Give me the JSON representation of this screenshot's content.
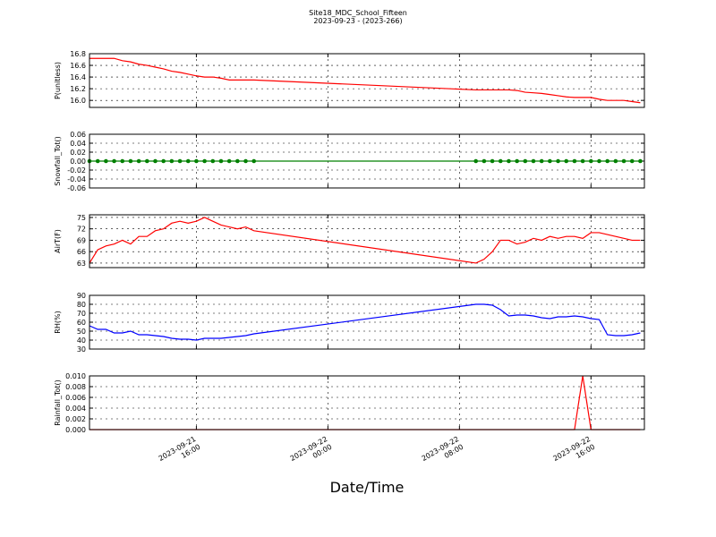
{
  "chart_data": {
    "type": "line",
    "title": "Site18_MDC_School_Fifteen",
    "subtitle": "2023-09-23 - (2023-266)",
    "xlabel": "Date/Time",
    "grid": true,
    "x": [
      "2023-09-21 09:30",
      "2023-09-21 10:00",
      "2023-09-21 10:30",
      "2023-09-21 11:00",
      "2023-09-21 11:30",
      "2023-09-21 12:00",
      "2023-09-21 12:30",
      "2023-09-21 13:00",
      "2023-09-21 13:30",
      "2023-09-21 14:00",
      "2023-09-21 14:30",
      "2023-09-21 15:00",
      "2023-09-21 15:30",
      "2023-09-21 16:00",
      "2023-09-21 16:30",
      "2023-09-21 17:00",
      "2023-09-21 17:30",
      "2023-09-21 18:00",
      "2023-09-21 18:30",
      "2023-09-21 19:00",
      "2023-09-21 19:30",
      "2023-09-22 09:00",
      "2023-09-22 09:30",
      "2023-09-22 10:00",
      "2023-09-22 10:30",
      "2023-09-22 11:00",
      "2023-09-22 11:30",
      "2023-09-22 12:00",
      "2023-09-22 12:30",
      "2023-09-22 13:00",
      "2023-09-22 13:30",
      "2023-09-22 14:00",
      "2023-09-22 14:30",
      "2023-09-22 15:00",
      "2023-09-22 15:30",
      "2023-09-22 16:00",
      "2023-09-22 16:30",
      "2023-09-22 17:00",
      "2023-09-22 17:30",
      "2023-09-22 18:00",
      "2023-09-22 18:30",
      "2023-09-22 19:00"
    ],
    "xlim": [
      "2023-09-21 09:30",
      "2023-09-22 19:15"
    ],
    "xticks": [
      "2023-09-21 16:00",
      "2023-09-22 00:00",
      "2023-09-22 08:00",
      "2023-09-22 16:00"
    ],
    "panels": [
      {
        "ylabel": "P(unitless)",
        "ylim": [
          15.88,
          16.8
        ],
        "yticks": [
          {
            "value": 16,
            "label": "16.0"
          },
          {
            "value": 16.2,
            "label": "16.2"
          },
          {
            "value": 16.4,
            "label": "16.4"
          },
          {
            "value": 16.6,
            "label": "16.6"
          },
          {
            "value": 16.8,
            "label": "16.8"
          }
        ],
        "series": [
          {
            "color": "#ff0000",
            "markers": false,
            "values": [
              16.72,
              16.72,
              16.72,
              16.72,
              16.68,
              16.66,
              16.62,
              16.6,
              16.57,
              16.54,
              16.5,
              16.48,
              16.45,
              16.42,
              16.4,
              16.4,
              16.38,
              16.35,
              16.35,
              16.35,
              16.35,
              16.18,
              16.18,
              16.18,
              16.18,
              16.18,
              16.17,
              16.14,
              16.13,
              16.12,
              16.1,
              16.08,
              16.06,
              16.05,
              16.05,
              16.05,
              16.02,
              16,
              16,
              16,
              15.98,
              15.96
            ]
          }
        ]
      },
      {
        "ylabel": "Snowfall_Tot()",
        "ylim": [
          -0.06,
          0.06
        ],
        "yticks": [
          {
            "value": -0.06,
            "label": "-0.06"
          },
          {
            "value": -0.04,
            "label": "-0.04"
          },
          {
            "value": -0.02,
            "label": "-0.02"
          },
          {
            "value": 0,
            "label": "0.00"
          },
          {
            "value": 0.02,
            "label": "0.02"
          },
          {
            "value": 0.04,
            "label": "0.04"
          },
          {
            "value": 0.06,
            "label": "0.06"
          }
        ],
        "series": [
          {
            "color": "#008000",
            "markers": true,
            "values": [
              0,
              0,
              0,
              0,
              0,
              0,
              0,
              0,
              0,
              0,
              0,
              0,
              0,
              0,
              0,
              0,
              0,
              0,
              0,
              0,
              0,
              0,
              0,
              0,
              0,
              0,
              0,
              0,
              0,
              0,
              0,
              0,
              0,
              0,
              0,
              0,
              0,
              0,
              0,
              0,
              0,
              0
            ]
          }
        ]
      },
      {
        "ylabel": "AirT(F)",
        "ylim": [
          61.8,
          75.7
        ],
        "yticks": [
          63,
          66,
          69,
          72,
          75
        ],
        "series": [
          {
            "color": "#ff0000",
            "markers": false,
            "values": [
              63,
              66.5,
              67.5,
              68,
              69,
              68,
              70,
              70,
              71.5,
              72,
              73.5,
              74,
              73.5,
              74,
              75,
              74,
              73,
              72.5,
              72,
              72.5,
              71.5,
              63,
              64,
              66,
              69,
              69,
              68,
              68.5,
              69.5,
              69,
              70,
              69.5,
              70,
              70,
              69.5,
              71,
              71,
              70.5,
              70,
              69.5,
              69,
              69
            ]
          }
        ]
      },
      {
        "ylabel": "RH(%)",
        "ylim": [
          30,
          90
        ],
        "yticks": [
          30,
          40,
          50,
          60,
          70,
          80,
          90
        ],
        "series": [
          {
            "color": "#0000ff",
            "markers": false,
            "values": [
              56,
              52,
              52,
              48,
              48,
              50,
              46,
              46,
              45,
              44,
              42,
              41,
              41,
              40,
              42,
              42,
              42,
              43,
              44,
              45,
              47,
              80,
              80,
              79,
              74,
              67,
              68,
              68,
              67,
              65,
              64,
              66,
              66,
              67,
              66,
              64,
              63,
              46,
              45,
              45,
              46,
              48
            ]
          }
        ]
      },
      {
        "ylabel": "Rainfall_Tot()",
        "ylim": [
          0,
          0.01
        ],
        "yticks": [
          {
            "value": 0,
            "label": "0.000"
          },
          {
            "value": 0.002,
            "label": "0.002"
          },
          {
            "value": 0.004,
            "label": "0.004"
          },
          {
            "value": 0.006,
            "label": "0.006"
          },
          {
            "value": 0.008,
            "label": "0.008"
          },
          {
            "value": 0.01,
            "label": "0.010"
          }
        ],
        "series": [
          {
            "color": "#ff0000",
            "markers": false,
            "values": [
              0,
              0,
              0,
              0,
              0,
              0,
              0,
              0,
              0,
              0,
              0,
              0,
              0,
              0,
              0,
              0,
              0,
              0,
              0,
              0,
              0,
              0,
              0,
              0,
              0,
              0,
              0,
              0,
              0,
              0,
              0,
              0,
              0,
              0,
              0.01,
              0,
              0,
              0,
              0,
              0,
              0,
              0
            ]
          }
        ]
      }
    ]
  }
}
